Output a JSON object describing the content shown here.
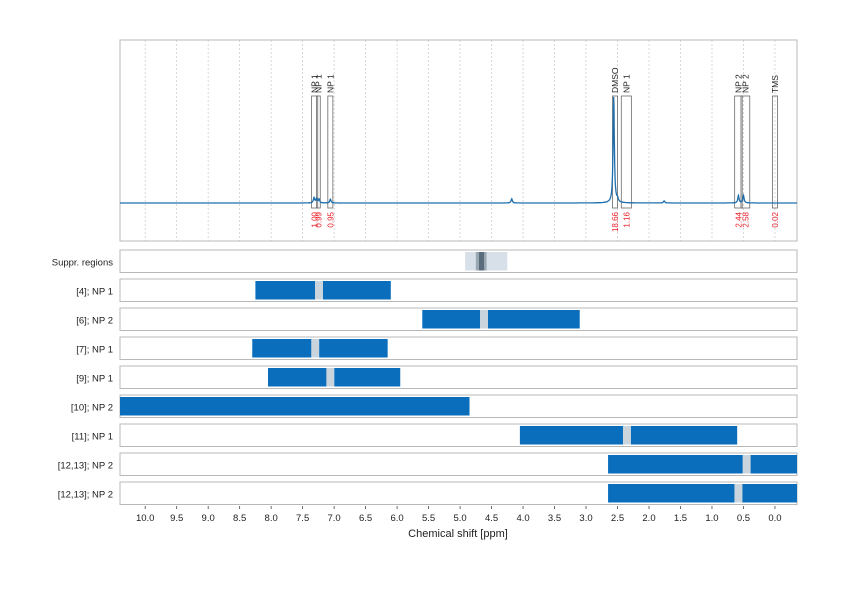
{
  "chart_data": {
    "type": "line",
    "xlabel": "Chemical shift [ppm]",
    "xlim": [
      10.4,
      -0.35
    ],
    "x_ticks": [
      "10.0",
      "9.5",
      "9.0",
      "8.5",
      "8.0",
      "7.5",
      "7.0",
      "6.5",
      "6.0",
      "5.5",
      "5.0",
      "4.5",
      "4.0",
      "3.5",
      "3.0",
      "2.5",
      "2.0",
      "1.5",
      "1.0",
      "0.5",
      "0.0"
    ],
    "grid": true,
    "spectrum": {
      "baseline": 0,
      "peaks": [
        {
          "x": 7.32,
          "y": 0.05
        },
        {
          "x": 7.28,
          "y": 0.04
        },
        {
          "x": 7.24,
          "y": 0.035
        },
        {
          "x": 7.06,
          "y": 0.035
        },
        {
          "x": 4.18,
          "y": 0.04
        },
        {
          "x": 2.56,
          "y": 1.0
        },
        {
          "x": 2.5,
          "y": 0.03
        },
        {
          "x": 1.76,
          "y": 0.02
        },
        {
          "x": 0.58,
          "y": 0.07
        },
        {
          "x": 0.5,
          "y": 0.07
        }
      ]
    },
    "annotations": [
      {
        "label": "NP 1",
        "x0": 7.36,
        "x1": 7.26,
        "integral": "1.00"
      },
      {
        "label": "NP 1",
        "x0": 7.28,
        "x1": 7.22,
        "integral": "0.99"
      },
      {
        "label": "NP 1",
        "x0": 7.1,
        "x1": 7.02,
        "integral": "0.95"
      },
      {
        "label": "DMSO",
        "x0": 2.58,
        "x1": 2.5,
        "integral": "18.66"
      },
      {
        "label": "NP 1",
        "x0": 2.44,
        "x1": 2.28,
        "integral": "1.16"
      },
      {
        "label": "NP 2",
        "x0": 0.64,
        "x1": 0.52,
        "integral": "2.44"
      },
      {
        "label": "NP 2",
        "x0": 0.54,
        "x1": 0.4,
        "integral": "2.58"
      },
      {
        "label": "TMS",
        "x0": 0.04,
        "x1": -0.04,
        "integral": "0.02"
      }
    ],
    "suppressed_regions": {
      "label": "Suppr. regions",
      "outer": [
        4.92,
        4.25
      ],
      "inner": [
        4.75,
        4.58
      ],
      "core": [
        4.7,
        4.62
      ]
    },
    "rows": [
      {
        "label": "[4]; NP 1",
        "range": [
          8.25,
          6.1
        ],
        "marker": 7.24
      },
      {
        "label": "[6]; NP 2",
        "range": [
          5.6,
          3.1
        ],
        "marker": 4.62
      },
      {
        "label": "[7]; NP 1",
        "range": [
          8.3,
          6.15
        ],
        "marker": 7.3
      },
      {
        "label": "[9]; NP 1",
        "range": [
          8.05,
          5.95
        ],
        "marker": 7.06
      },
      {
        "label": "[10]; NP 2",
        "range": [
          10.4,
          4.85
        ],
        "marker": null
      },
      {
        "label": "[11]; NP 1",
        "range": [
          4.05,
          0.6
        ],
        "marker": 2.35
      },
      {
        "label": "[12,13]; NP 2",
        "range": [
          2.65,
          -0.35
        ],
        "marker": 0.45
      },
      {
        "label": "[12,13]; NP 2",
        "range": [
          2.65,
          -0.35
        ],
        "marker": 0.58
      }
    ],
    "colors": {
      "bar": "#0a6ebd",
      "marker": "#c9d4dc",
      "spectrum": "#1f6fae",
      "integral": "#e8202a",
      "grid": "#c8c8c8",
      "panel_border": "#b8b8b8",
      "supp_outer": "#d7e0e8",
      "supp_inner": "#9aa8b4",
      "supp_core": "#5b6d7c"
    }
  }
}
